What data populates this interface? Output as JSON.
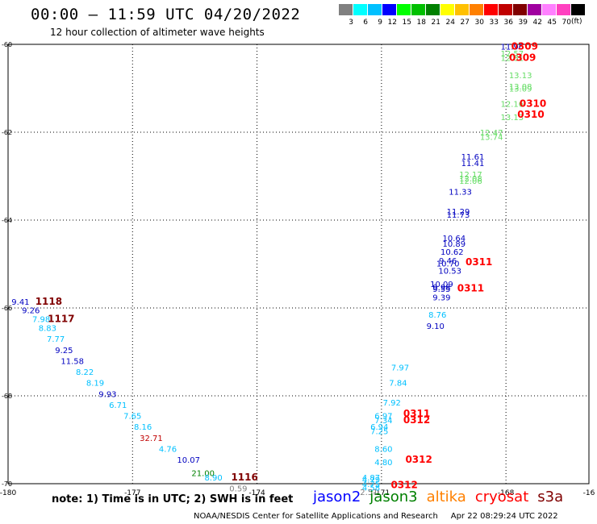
{
  "title": "00:00 – 11:59 UTC 04/20/2022",
  "subtitle": "12 hour collection of altimeter wave heights",
  "legend": {
    "colors": [
      "#808080",
      "#00ffff",
      "#00c0ff",
      "#0000ff",
      "#00ff00",
      "#00c000",
      "#008000",
      "#ffff00",
      "#ffc000",
      "#ff8000",
      "#ff0000",
      "#c00000",
      "#800000",
      "#a000a0",
      "#ff80ff",
      "#ff40c0",
      "#000000"
    ],
    "labels": [
      "3",
      "6",
      "9",
      "12",
      "15",
      "18",
      "21",
      "24",
      "27",
      "30",
      "33",
      "36",
      "39",
      "42",
      "45",
      "70"
    ],
    "unit": "(ft)"
  },
  "note": "note:  1) Time is in UTC;  2) SWH is in feet",
  "missions": [
    {
      "name": "jason2",
      "color": "#0000ff"
    },
    {
      "name": "jason3",
      "color": "#008000"
    },
    {
      "name": "altika",
      "color": "#ff8000"
    },
    {
      "name": "cryosat",
      "color": "#ff0000"
    },
    {
      "name": "s3a",
      "color": "#800000"
    }
  ],
  "footer": "NOAA/NESDIS Center for Satellite Applications and Research     Apr 22 08:29:24 UTC 2022",
  "chart_data": {
    "type": "scatter",
    "title": "00:00 – 11:59 UTC 04/20/2022",
    "xlabel": "",
    "ylabel": "",
    "xlim": [
      -180,
      -166
    ],
    "ylim": [
      -70,
      -60
    ],
    "x_ticks": [
      "-180",
      "-177",
      "-174",
      "-171",
      "-168",
      "-16"
    ],
    "y_ticks": [
      "-60",
      "-62",
      "-64",
      "-66",
      "-68",
      "-70"
    ],
    "grid": true,
    "series": [
      {
        "mission": "west_track",
        "points": [
          {
            "lon": -179.7,
            "lat": -65.85,
            "text": "9.41",
            "color": "#0000c0"
          },
          {
            "lon": -179.45,
            "lat": -66.05,
            "text": "9.26",
            "color": "#0000c0"
          },
          {
            "lon": -179.2,
            "lat": -66.25,
            "text": "7.98",
            "color": "#00c0ff"
          },
          {
            "lon": -179.05,
            "lat": -66.45,
            "text": "8.83",
            "color": "#00c0ff"
          },
          {
            "lon": -178.85,
            "lat": -66.7,
            "text": "7.77",
            "color": "#00c0ff"
          },
          {
            "lon": -178.65,
            "lat": -66.95,
            "text": "9.25",
            "color": "#0000c0"
          },
          {
            "lon": -178.45,
            "lat": -67.2,
            "text": "11.58",
            "color": "#0000c0"
          },
          {
            "lon": -178.15,
            "lat": -67.45,
            "text": "8.22",
            "color": "#00c0ff"
          },
          {
            "lon": -177.9,
            "lat": -67.7,
            "text": "8.19",
            "color": "#00c0ff"
          },
          {
            "lon": -177.6,
            "lat": -67.95,
            "text": "9.93",
            "color": "#0000c0"
          },
          {
            "lon": -177.35,
            "lat": -68.2,
            "text": "6.71",
            "color": "#00c0ff"
          },
          {
            "lon": -177.0,
            "lat": -68.45,
            "text": "7.65",
            "color": "#00c0ff"
          },
          {
            "lon": -176.75,
            "lat": -68.7,
            "text": "8.16",
            "color": "#00c0ff"
          },
          {
            "lon": -176.55,
            "lat": -68.95,
            "text": "32.71",
            "color": "#c00000"
          },
          {
            "lon": -176.15,
            "lat": -69.2,
            "text": "4.76",
            "color": "#00c0ff"
          },
          {
            "lon": -175.65,
            "lat": -69.45,
            "text": "10.07",
            "color": "#0000c0"
          },
          {
            "lon": -175.3,
            "lat": -69.75,
            "text": "21.00",
            "color": "#008000"
          },
          {
            "lon": -175.05,
            "lat": -69.85,
            "text": "8.90",
            "color": "#00c0ff"
          },
          {
            "lon": -174.45,
            "lat": -70.1,
            "text": "0.59",
            "color": "#808080"
          }
        ]
      },
      {
        "mission": "east_track",
        "points": [
          {
            "lon": -167.85,
            "lat": -60.05,
            "text": "11.96",
            "color": "#0000c0"
          },
          {
            "lon": -167.85,
            "lat": -60.2,
            "text": "12.57",
            "color": "#66dd66"
          },
          {
            "lon": -167.85,
            "lat": -60.3,
            "text": "12.81",
            "color": "#66dd66"
          },
          {
            "lon": -167.65,
            "lat": -60.7,
            "text": "13.13",
            "color": "#66dd66"
          },
          {
            "lon": -167.65,
            "lat": -60.95,
            "text": "13.08",
            "color": "#66dd66"
          },
          {
            "lon": -167.65,
            "lat": -61.0,
            "text": "13.09",
            "color": "#66dd66"
          },
          {
            "lon": -167.85,
            "lat": -61.35,
            "text": "12.16",
            "color": "#66dd66"
          },
          {
            "lon": -167.85,
            "lat": -61.65,
            "text": "13.13",
            "color": "#66dd66"
          },
          {
            "lon": -168.35,
            "lat": -62.0,
            "text": "12.47",
            "color": "#66dd66"
          },
          {
            "lon": -168.35,
            "lat": -62.1,
            "text": "13.74",
            "color": "#66dd66"
          },
          {
            "lon": -168.8,
            "lat": -62.55,
            "text": "11.61",
            "color": "#0000c0"
          },
          {
            "lon": -168.8,
            "lat": -62.7,
            "text": "11.41",
            "color": "#0000c0"
          },
          {
            "lon": -168.85,
            "lat": -62.95,
            "text": "12.17",
            "color": "#66dd66"
          },
          {
            "lon": -168.85,
            "lat": -63.05,
            "text": "12.08",
            "color": "#66dd66"
          },
          {
            "lon": -168.85,
            "lat": -63.1,
            "text": "12.06",
            "color": "#66dd66"
          },
          {
            "lon": -169.1,
            "lat": -63.35,
            "text": "11.33",
            "color": "#0000c0"
          },
          {
            "lon": -169.15,
            "lat": -63.8,
            "text": "11.29",
            "color": "#0000c0"
          },
          {
            "lon": -169.15,
            "lat": -63.87,
            "text": "11.73",
            "color": "#0000c0"
          },
          {
            "lon": -169.25,
            "lat": -64.4,
            "text": "10.64",
            "color": "#0000c0"
          },
          {
            "lon": -169.25,
            "lat": -64.53,
            "text": "10.89",
            "color": "#0000c0"
          },
          {
            "lon": -169.3,
            "lat": -64.72,
            "text": "10.62",
            "color": "#0000c0"
          },
          {
            "lon": -169.4,
            "lat": -64.92,
            "text": "9.46",
            "color": "#0000c0"
          },
          {
            "lon": -169.4,
            "lat": -64.98,
            "text": "10.70",
            "color": "#0000c0"
          },
          {
            "lon": -169.35,
            "lat": -65.15,
            "text": "10.53",
            "color": "#0000c0"
          },
          {
            "lon": -169.55,
            "lat": -65.45,
            "text": "10.09",
            "color": "#0000c0"
          },
          {
            "lon": -169.55,
            "lat": -65.52,
            "text": "9.98",
            "color": "#0000c0"
          },
          {
            "lon": -169.55,
            "lat": -65.56,
            "text": "9.55",
            "color": "#0000c0"
          },
          {
            "lon": -169.55,
            "lat": -65.75,
            "text": "9.39",
            "color": "#0000c0"
          },
          {
            "lon": -169.65,
            "lat": -66.15,
            "text": "8.76",
            "color": "#00c0ff"
          },
          {
            "lon": -169.7,
            "lat": -66.4,
            "text": "9.10",
            "color": "#0000c0"
          },
          {
            "lon": -170.55,
            "lat": -67.35,
            "text": "7.97",
            "color": "#00c0ff"
          },
          {
            "lon": -170.6,
            "lat": -67.7,
            "text": "7.84",
            "color": "#00c0ff"
          },
          {
            "lon": -170.75,
            "lat": -68.15,
            "text": "7.92",
            "color": "#00c0ff"
          },
          {
            "lon": -170.95,
            "lat": -68.45,
            "text": "6.97",
            "color": "#00c0ff"
          },
          {
            "lon": -170.95,
            "lat": -68.55,
            "text": "7.34",
            "color": "#00c0ff"
          },
          {
            "lon": -171.05,
            "lat": -68.7,
            "text": "6.94",
            "color": "#00c0ff"
          },
          {
            "lon": -171.05,
            "lat": -68.8,
            "text": "7.25",
            "color": "#00c0ff"
          },
          {
            "lon": -170.95,
            "lat": -69.2,
            "text": "8.60",
            "color": "#00c0ff"
          },
          {
            "lon": -170.95,
            "lat": -69.5,
            "text": "4.80",
            "color": "#00c0ff"
          },
          {
            "lon": -171.25,
            "lat": -69.85,
            "text": "4.87",
            "color": "#00c0ff"
          },
          {
            "lon": -171.25,
            "lat": -69.9,
            "text": "4.79",
            "color": "#00c0ff"
          },
          {
            "lon": -171.25,
            "lat": -70.0,
            "text": "4.75",
            "color": "#00c0ff"
          },
          {
            "lon": -171.25,
            "lat": -70.08,
            "text": "4.58",
            "color": "#00c0ff"
          },
          {
            "lon": -171.3,
            "lat": -70.18,
            "text": "2.51",
            "color": "#808080"
          }
        ]
      }
    ],
    "time_labels": [
      {
        "lon": -167.55,
        "lat": -60.05,
        "text": "0309",
        "color": "#ff0000"
      },
      {
        "lon": -167.6,
        "lat": -60.3,
        "text": "0309",
        "color": "#ff0000"
      },
      {
        "lon": -167.35,
        "lat": -61.35,
        "text": "0310",
        "color": "#ff0000"
      },
      {
        "lon": -167.4,
        "lat": -61.6,
        "text": "0310",
        "color": "#ff0000"
      },
      {
        "lon": -168.65,
        "lat": -64.95,
        "text": "0311",
        "color": "#ff0000"
      },
      {
        "lon": -168.85,
        "lat": -65.55,
        "text": "0311",
        "color": "#ff0000"
      },
      {
        "lon": -170.15,
        "lat": -68.4,
        "text": "0311",
        "color": "#ff0000"
      },
      {
        "lon": -170.15,
        "lat": -68.55,
        "text": "0312",
        "color": "#ff0000"
      },
      {
        "lon": -170.1,
        "lat": -69.45,
        "text": "0312",
        "color": "#ff0000"
      },
      {
        "lon": -170.45,
        "lat": -70.03,
        "text": "0312",
        "color": "#ff0000"
      },
      {
        "lon": -179.02,
        "lat": -65.85,
        "text": "1118",
        "color": "#800000"
      },
      {
        "lon": -178.72,
        "lat": -66.25,
        "text": "1117",
        "color": "#800000"
      },
      {
        "lon": -174.3,
        "lat": -69.85,
        "text": "1116",
        "color": "#800000"
      }
    ]
  }
}
